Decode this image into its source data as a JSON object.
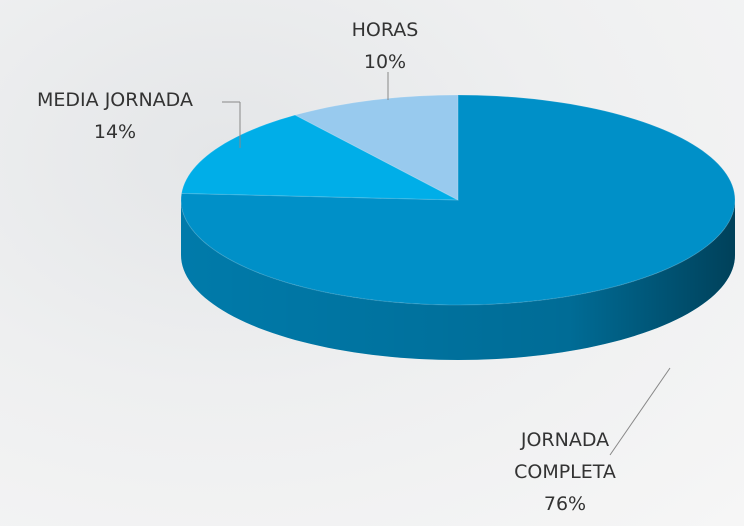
{
  "chart_data": {
    "type": "pie3d",
    "categories": [
      "JORNADA COMPLETA",
      "MEDIA JORNADA",
      "HORAS"
    ],
    "values": [
      76,
      14,
      10
    ],
    "value_labels": [
      "76%",
      "14%",
      "10%"
    ],
    "colors": [
      "#0090c8",
      "#00aee8",
      "#98caee"
    ]
  }
}
